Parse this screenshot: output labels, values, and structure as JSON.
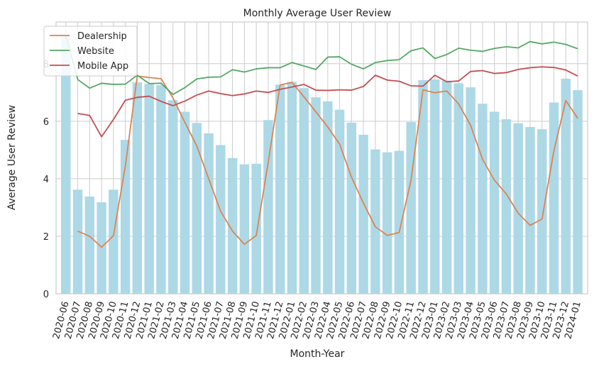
{
  "chart_data": {
    "type": "bar",
    "title": "Monthly Average User Review",
    "xlabel": "Month-Year",
    "ylabel": "Average User Review",
    "ylim": [
      0,
      9.45
    ],
    "yticks": [
      0,
      2,
      4,
      6,
      8
    ],
    "grid": true,
    "legend_position": "top-left",
    "categories": [
      "2020-06",
      "2020-07",
      "2020-08",
      "2020-09",
      "2020-10",
      "2020-11",
      "2020-12",
      "2021-01",
      "2021-02",
      "2021-03",
      "2021-04",
      "2021-05",
      "2021-06",
      "2021-07",
      "2021-08",
      "2021-09",
      "2021-10",
      "2021-11",
      "2021-12",
      "2022-01",
      "2022-02",
      "2022-03",
      "2022-04",
      "2022-05",
      "2022-06",
      "2022-07",
      "2022-08",
      "2022-09",
      "2022-10",
      "2022-11",
      "2022-12",
      "2023-01",
      "2023-02",
      "2023-03",
      "2023-04",
      "2023-05",
      "2023-06",
      "2023-07",
      "2023-08",
      "2023-09",
      "2023-10",
      "2023-11",
      "2023-12",
      "2024-01"
    ],
    "bars": {
      "color": "#add8e6",
      "values": [
        9.0,
        3.62,
        3.38,
        3.18,
        3.62,
        5.35,
        7.35,
        7.3,
        7.25,
        6.73,
        6.33,
        5.94,
        5.58,
        5.17,
        4.72,
        4.5,
        4.52,
        6.04,
        7.27,
        7.37,
        7.15,
        6.83,
        6.69,
        6.4,
        5.95,
        5.53,
        5.02,
        4.92,
        4.97,
        5.97,
        7.43,
        7.45,
        7.41,
        7.32,
        7.18,
        6.61,
        6.33,
        6.07,
        5.93,
        5.8,
        5.72,
        6.65,
        7.48,
        7.08
      ]
    },
    "series": [
      {
        "name": "Dealership",
        "color": "#dd8452",
        "values": [
          null,
          2.18,
          2.0,
          1.62,
          2.02,
          4.45,
          7.57,
          7.52,
          7.48,
          6.81,
          5.96,
          5.14,
          4.0,
          2.87,
          2.18,
          1.72,
          2.03,
          4.57,
          7.26,
          7.35,
          6.85,
          6.33,
          5.8,
          5.2,
          4.05,
          3.15,
          2.33,
          2.03,
          2.13,
          3.96,
          7.09,
          6.99,
          7.05,
          6.6,
          5.86,
          4.68,
          3.95,
          3.47,
          2.8,
          2.38,
          2.6,
          4.98,
          6.72,
          6.1
        ]
      },
      {
        "name": "Website",
        "color": "#55a868",
        "values": [
          9.0,
          7.45,
          7.15,
          7.32,
          7.28,
          7.29,
          7.6,
          7.31,
          7.32,
          6.93,
          7.17,
          7.47,
          7.53,
          7.54,
          7.79,
          7.71,
          7.82,
          7.86,
          7.86,
          8.04,
          7.92,
          7.8,
          8.23,
          8.24,
          7.98,
          7.82,
          8.04,
          8.11,
          8.14,
          8.45,
          8.55,
          8.18,
          8.32,
          8.54,
          8.47,
          8.43,
          8.53,
          8.59,
          8.55,
          8.77,
          8.69,
          8.75,
          8.67,
          8.52
        ]
      },
      {
        "name": "Mobile App",
        "color": "#c44e52",
        "values": [
          null,
          6.27,
          6.2,
          5.46,
          6.06,
          6.73,
          6.83,
          6.87,
          6.69,
          6.54,
          6.7,
          6.91,
          7.05,
          6.96,
          6.89,
          6.95,
          7.05,
          7.0,
          7.11,
          7.19,
          7.28,
          7.08,
          7.07,
          7.09,
          7.08,
          7.21,
          7.6,
          7.43,
          7.39,
          7.23,
          7.22,
          7.6,
          7.37,
          7.4,
          7.73,
          7.76,
          7.66,
          7.69,
          7.8,
          7.86,
          7.89,
          7.87,
          7.78,
          7.57
        ]
      }
    ]
  }
}
